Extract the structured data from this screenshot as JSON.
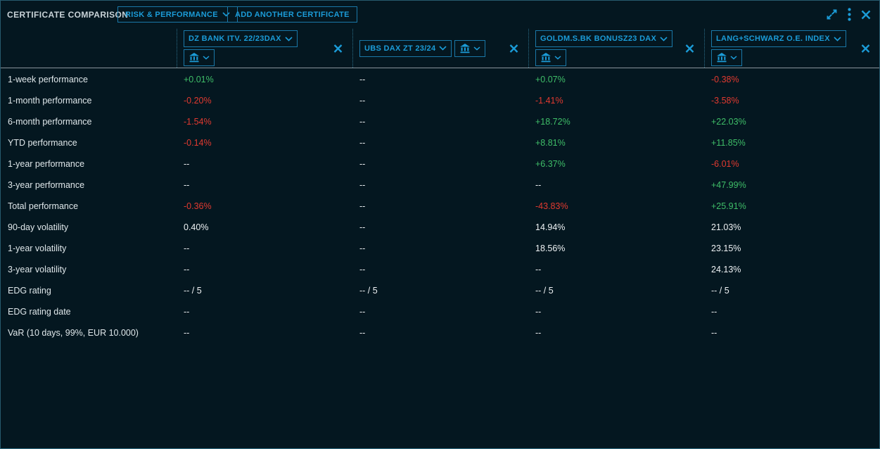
{
  "header": {
    "title": "CERTIFICATE COMPARISON",
    "view_dropdown": {
      "label": "RISK & PERFORMANCE"
    },
    "add_certificate_button": "ADD ANOTHER CERTIFICATE"
  },
  "icons": {
    "expand": "expand-diagonal-arrows",
    "menu": "kebab-vertical-dots",
    "close": "x-cross",
    "bank": "classical-building",
    "chevron": "chevron-down",
    "remove_certificate": "x-cross"
  },
  "colors": {
    "background": "#041720",
    "accent": "#1b9cd8",
    "positive": "#3fbe68",
    "negative": "#e23a30",
    "neutral": "#eef2f4",
    "separator": "#89939b"
  },
  "certificates": [
    {
      "name": "DZ BANK ITV. 22/23DAX"
    },
    {
      "name": "UBS DAX ZT 23/24"
    },
    {
      "name": "GOLDM.S.BK BONUSZ23 DAX"
    },
    {
      "name": "LANG+SCHWARZ O.E. INDEX"
    }
  ],
  "metrics": [
    {
      "label": "1-week performance",
      "values": [
        {
          "text": "+0.01%",
          "tone": "positive"
        },
        {
          "text": "--",
          "tone": "neutral"
        },
        {
          "text": "+0.07%",
          "tone": "positive"
        },
        {
          "text": "-0.38%",
          "tone": "negative"
        }
      ]
    },
    {
      "label": "1-month performance",
      "values": [
        {
          "text": "-0.20%",
          "tone": "negative"
        },
        {
          "text": "--",
          "tone": "neutral"
        },
        {
          "text": "-1.41%",
          "tone": "negative"
        },
        {
          "text": "-3.58%",
          "tone": "negative"
        }
      ]
    },
    {
      "label": "6-month performance",
      "values": [
        {
          "text": "-1.54%",
          "tone": "negative"
        },
        {
          "text": "--",
          "tone": "neutral"
        },
        {
          "text": "+18.72%",
          "tone": "positive"
        },
        {
          "text": "+22.03%",
          "tone": "positive"
        }
      ]
    },
    {
      "label": "YTD performance",
      "values": [
        {
          "text": "-0.14%",
          "tone": "negative"
        },
        {
          "text": "--",
          "tone": "neutral"
        },
        {
          "text": "+8.81%",
          "tone": "positive"
        },
        {
          "text": "+11.85%",
          "tone": "positive"
        }
      ]
    },
    {
      "label": "1-year performance",
      "values": [
        {
          "text": "--",
          "tone": "neutral"
        },
        {
          "text": "--",
          "tone": "neutral"
        },
        {
          "text": "+6.37%",
          "tone": "positive"
        },
        {
          "text": "-6.01%",
          "tone": "negative"
        }
      ]
    },
    {
      "label": "3-year performance",
      "values": [
        {
          "text": "--",
          "tone": "neutral"
        },
        {
          "text": "--",
          "tone": "neutral"
        },
        {
          "text": "--",
          "tone": "neutral"
        },
        {
          "text": "+47.99%",
          "tone": "positive"
        }
      ]
    },
    {
      "label": "Total performance",
      "values": [
        {
          "text": "-0.36%",
          "tone": "negative"
        },
        {
          "text": "--",
          "tone": "neutral"
        },
        {
          "text": "-43.83%",
          "tone": "negative"
        },
        {
          "text": "+25.91%",
          "tone": "positive"
        }
      ]
    },
    {
      "label": "90-day volatility",
      "values": [
        {
          "text": "0.40%",
          "tone": "neutral"
        },
        {
          "text": "--",
          "tone": "neutral"
        },
        {
          "text": "14.94%",
          "tone": "neutral"
        },
        {
          "text": "21.03%",
          "tone": "neutral"
        }
      ]
    },
    {
      "label": "1-year volatility",
      "values": [
        {
          "text": "--",
          "tone": "neutral"
        },
        {
          "text": "--",
          "tone": "neutral"
        },
        {
          "text": "18.56%",
          "tone": "neutral"
        },
        {
          "text": "23.15%",
          "tone": "neutral"
        }
      ]
    },
    {
      "label": "3-year volatility",
      "values": [
        {
          "text": "--",
          "tone": "neutral"
        },
        {
          "text": "--",
          "tone": "neutral"
        },
        {
          "text": "--",
          "tone": "neutral"
        },
        {
          "text": "24.13%",
          "tone": "neutral"
        }
      ]
    },
    {
      "label": "EDG rating",
      "values": [
        {
          "text": "-- / 5",
          "tone": "neutral"
        },
        {
          "text": "-- / 5",
          "tone": "neutral"
        },
        {
          "text": "-- / 5",
          "tone": "neutral"
        },
        {
          "text": "-- / 5",
          "tone": "neutral"
        }
      ]
    },
    {
      "label": "EDG rating date",
      "values": [
        {
          "text": "--",
          "tone": "neutral"
        },
        {
          "text": "--",
          "tone": "neutral"
        },
        {
          "text": "--",
          "tone": "neutral"
        },
        {
          "text": "--",
          "tone": "neutral"
        }
      ]
    },
    {
      "label": "VaR (10 days, 99%, EUR 10.000)",
      "values": [
        {
          "text": "--",
          "tone": "neutral"
        },
        {
          "text": "--",
          "tone": "neutral"
        },
        {
          "text": "--",
          "tone": "neutral"
        },
        {
          "text": "--",
          "tone": "neutral"
        }
      ]
    }
  ]
}
